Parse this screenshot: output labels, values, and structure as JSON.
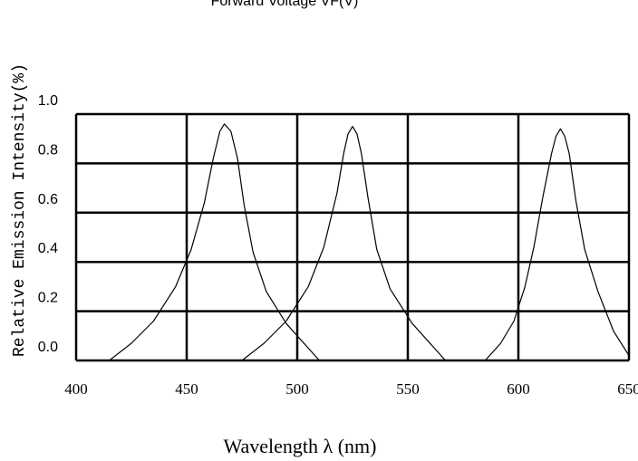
{
  "chart_data": {
    "type": "line",
    "top_label": "Forward Voltage VF(V)",
    "xlabel": "Wavelength λ (nm)",
    "ylabel": "Relative Emission Intensity(%)",
    "xlim": [
      400,
      650
    ],
    "ylim": [
      0,
      1.0
    ],
    "x_ticks": [
      "400",
      "450",
      "500",
      "550",
      "600",
      "650"
    ],
    "y_ticks": [
      "0.0",
      "0.2",
      "0.4",
      "0.6",
      "0.8",
      "1.0"
    ],
    "grid": true,
    "line_color": "#000000",
    "series": [
      {
        "x": [
          415,
          425,
          435,
          445,
          452,
          458,
          462,
          465,
          467,
          470,
          473,
          476,
          480,
          486,
          495,
          505,
          510
        ],
        "y": [
          0.0,
          0.07,
          0.16,
          0.3,
          0.45,
          0.64,
          0.82,
          0.93,
          0.96,
          0.93,
          0.82,
          0.63,
          0.44,
          0.28,
          0.15,
          0.05,
          0.0
        ]
      },
      {
        "x": [
          475,
          485,
          495,
          505,
          512,
          518,
          521,
          523,
          525,
          527,
          529,
          532,
          536,
          542,
          552,
          562,
          567
        ],
        "y": [
          0.0,
          0.07,
          0.16,
          0.3,
          0.46,
          0.68,
          0.84,
          0.92,
          0.95,
          0.92,
          0.84,
          0.66,
          0.45,
          0.29,
          0.15,
          0.05,
          0.0
        ]
      },
      {
        "x": [
          585,
          592,
          598,
          603,
          607,
          611,
          615,
          617,
          619,
          621,
          623,
          626,
          630,
          636,
          643,
          650
        ],
        "y": [
          0.0,
          0.07,
          0.16,
          0.3,
          0.46,
          0.66,
          0.84,
          0.91,
          0.94,
          0.91,
          0.84,
          0.65,
          0.45,
          0.28,
          0.12,
          0.02
        ]
      }
    ]
  }
}
